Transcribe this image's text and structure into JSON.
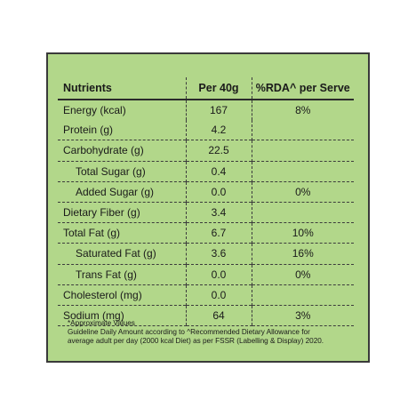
{
  "table": {
    "headers": [
      "Nutrients",
      "Per 40g",
      "%RDA^ per Serve"
    ],
    "rows": [
      {
        "name": "Energy (kcal)",
        "per": "167",
        "rda": "8%",
        "indent": false
      },
      {
        "name": "Protein (g)",
        "per": "4.2",
        "rda": "",
        "indent": false
      },
      {
        "name": "Carbohydrate (g)",
        "per": "22.5",
        "rda": "",
        "indent": false
      },
      {
        "name": "Total Sugar (g)",
        "per": "0.4",
        "rda": "",
        "indent": true
      },
      {
        "name": "Added Sugar (g)",
        "per": "0.0",
        "rda": "0%",
        "indent": true
      },
      {
        "name": "Dietary Fiber (g)",
        "per": "3.4",
        "rda": "",
        "indent": false
      },
      {
        "name": "Total Fat (g)",
        "per": "6.7",
        "rda": "10%",
        "indent": false
      },
      {
        "name": "Saturated Fat (g)",
        "per": "3.6",
        "rda": "16%",
        "indent": true
      },
      {
        "name": "Trans Fat (g)",
        "per": "0.0",
        "rda": "0%",
        "indent": true
      },
      {
        "name": "Cholesterol (mg)",
        "per": "0.0",
        "rda": "",
        "indent": false
      },
      {
        "name": "Sodium (mg)",
        "per": "64",
        "rda": "3%",
        "indent": false
      }
    ]
  },
  "notes": {
    "line1": "*Approximate Values",
    "line2": "Guideline Daily Amount according to ^Recommended Dietary Allowance for",
    "line3": "average adult per day (2000 kcal Diet) as per FSSR (Labelling & Display) 2020."
  }
}
